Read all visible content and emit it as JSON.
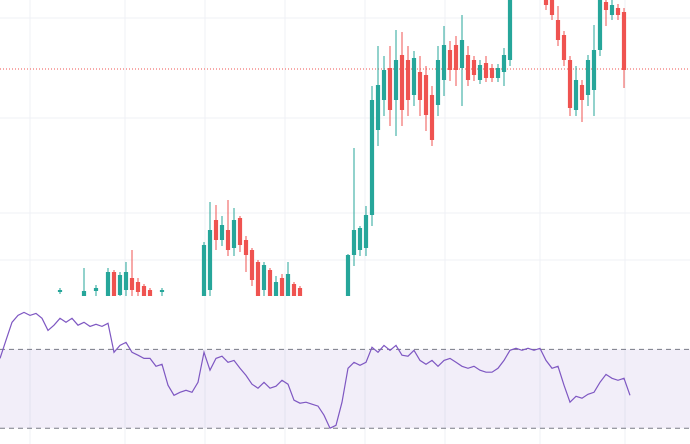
{
  "chart_data": [
    {
      "type": "candlestick",
      "x": [
        0,
        4,
        6,
        8,
        9,
        10,
        11,
        12,
        13,
        14,
        15,
        17,
        24,
        25,
        26,
        27,
        28,
        29,
        30,
        31,
        32,
        33,
        34,
        35,
        36,
        37,
        38,
        39,
        40,
        48,
        49,
        50,
        51,
        52,
        53,
        54,
        55,
        56,
        57,
        58,
        59,
        60,
        61,
        62,
        63,
        64,
        65,
        66,
        67,
        68,
        69,
        70,
        71,
        72,
        73,
        74,
        75,
        81,
        82,
        83,
        84,
        85,
        86,
        87,
        88,
        89,
        90,
        91,
        92,
        93,
        94
      ],
      "open": [
        4,
        -5,
        5,
        -10,
        24,
        1,
        6,
        18,
        14,
        10,
        6,
        4,
        -10,
        6,
        76,
        56,
        66,
        48,
        78,
        56,
        46,
        34,
        6,
        26,
        -5,
        18,
        -5,
        12,
        8,
        -10,
        41,
        46,
        48,
        81,
        166,
        196,
        228,
        196,
        241,
        236,
        201,
        224,
        221,
        201,
        191,
        216,
        246,
        251,
        228,
        241,
        236,
        216,
        233,
        228,
        218,
        224,
        236,
        306,
        296,
        276,
        261,
        236,
        186,
        211,
        201,
        206,
        246,
        294,
        281,
        288,
        284
      ],
      "high": [
        8,
        28,
        11,
        28,
        26,
        24,
        34,
        46,
        18,
        12,
        8,
        8,
        54,
        94,
        91,
        80,
        96,
        88,
        80,
        60,
        48,
        36,
        34,
        28,
        20,
        22,
        34,
        14,
        10,
        42,
        148,
        70,
        90,
        210,
        250,
        240,
        250,
        266,
        264,
        250,
        245,
        240,
        230,
        210,
        250,
        270,
        255,
        260,
        281,
        250,
        240,
        236,
        240,
        232,
        232,
        248,
        330,
        310,
        300,
        290,
        265,
        240,
        230,
        216,
        241,
        271,
        300,
        298,
        296,
        292,
        288
      ],
      "low": [
        2,
        -10,
        -5,
        -20,
        -20,
        -5,
        0,
        0,
        -2,
        -5,
        -10,
        -5,
        -20,
        0,
        46,
        50,
        40,
        40,
        44,
        24,
        10,
        -10,
        0,
        -10,
        -10,
        -10,
        -10,
        -10,
        -10,
        -20,
        30,
        40,
        40,
        70,
        150,
        180,
        170,
        160,
        170,
        180,
        190,
        180,
        165,
        150,
        180,
        200,
        215,
        210,
        190,
        210,
        215,
        212,
        214,
        214,
        214,
        210,
        230,
        286,
        276,
        250,
        230,
        180,
        180,
        174,
        190,
        180,
        240,
        270,
        276,
        276,
        208
      ],
      "close": [
        6,
        5,
        8,
        24,
        -10,
        21,
        24,
        6,
        4,
        0,
        -5,
        6,
        51,
        66,
        56,
        71,
        46,
        76,
        51,
        41,
        16,
        -5,
        31,
        -5,
        14,
        -5,
        22,
        -5,
        -5,
        41,
        66,
        68,
        81,
        196,
        211,
        226,
        186,
        236,
        186,
        196,
        238,
        196,
        181,
        156,
        236,
        251,
        226,
        226,
        256,
        216,
        221,
        231,
        218,
        218,
        228,
        241,
        316,
        291,
        281,
        256,
        236,
        188,
        216,
        196,
        236,
        246,
        296,
        286,
        291,
        281,
        226
      ],
      "xlim": [
        -10,
        105
      ],
      "ylim": [
        0,
        296
      ],
      "up_color": "#26a69a",
      "down_color": "#ef5350",
      "price_line": 227,
      "price_line_color": "#ef5350"
    },
    {
      "type": "line",
      "x": [
        -10,
        -9,
        -8,
        -7,
        -6,
        -5,
        -4,
        -3,
        -2,
        -1,
        0,
        1,
        2,
        3,
        4,
        5,
        6,
        7,
        8,
        9,
        10,
        11,
        12,
        13,
        14,
        15,
        16,
        17,
        18,
        19,
        20,
        21,
        22,
        23,
        24,
        25,
        26,
        27,
        28,
        29,
        30,
        31,
        32,
        33,
        34,
        35,
        36,
        37,
        38,
        39,
        40,
        41,
        42,
        43,
        44,
        45,
        46,
        47,
        48,
        49,
        50,
        51,
        52,
        53,
        54,
        55,
        56,
        57,
        58,
        59,
        60,
        61,
        62,
        63,
        64,
        65,
        66,
        67,
        68,
        69,
        70,
        71,
        72,
        73,
        74,
        75,
        76,
        77,
        78,
        79,
        80,
        81,
        82,
        83,
        84,
        85,
        86,
        87,
        88,
        89,
        90,
        91,
        92,
        93,
        94,
        95
      ],
      "values": [
        65.4,
        74.6,
        83.7,
        87.2,
        88.7,
        87.2,
        88.2,
        85.7,
        79.6,
        82.2,
        85.7,
        83.7,
        85.7,
        82.2,
        83.7,
        81.6,
        82.7,
        81.6,
        83.2,
        68.5,
        72.0,
        73.5,
        68.5,
        67.0,
        65.4,
        65.4,
        61.4,
        62.4,
        51.8,
        46.7,
        48.2,
        49.2,
        48.2,
        53.3,
        68.5,
        59.4,
        65.4,
        66.5,
        63.4,
        64.4,
        60.4,
        56.8,
        52.3,
        50.3,
        53.3,
        50.3,
        51.3,
        54.3,
        52.3,
        44.2,
        42.7,
        43.2,
        42.2,
        41.2,
        36.6,
        30.0,
        31.5,
        43.2,
        60.4,
        63.4,
        61.9,
        63.4,
        71.0,
        68.5,
        72.0,
        69.5,
        72.0,
        67.0,
        66.5,
        69.5,
        64.4,
        62.4,
        64.4,
        61.4,
        64.4,
        65.4,
        63.4,
        61.4,
        60.4,
        61.4,
        59.4,
        58.4,
        58.4,
        60.4,
        64.4,
        69.5,
        70.5,
        69.5,
        70.5,
        69.5,
        70.5,
        64.4,
        60.4,
        61.4,
        51.8,
        43.2,
        46.2,
        45.2,
        47.2,
        48.2,
        53.3,
        57.3,
        55.3,
        54.3,
        55.3,
        46.7
      ],
      "color": "#7e57c2",
      "xlim": [
        -10,
        105
      ],
      "ylim": [
        22,
        95
      ],
      "levels": [
        70,
        30
      ],
      "band_color": "#7e57c2",
      "level_color": "#787b86"
    }
  ]
}
